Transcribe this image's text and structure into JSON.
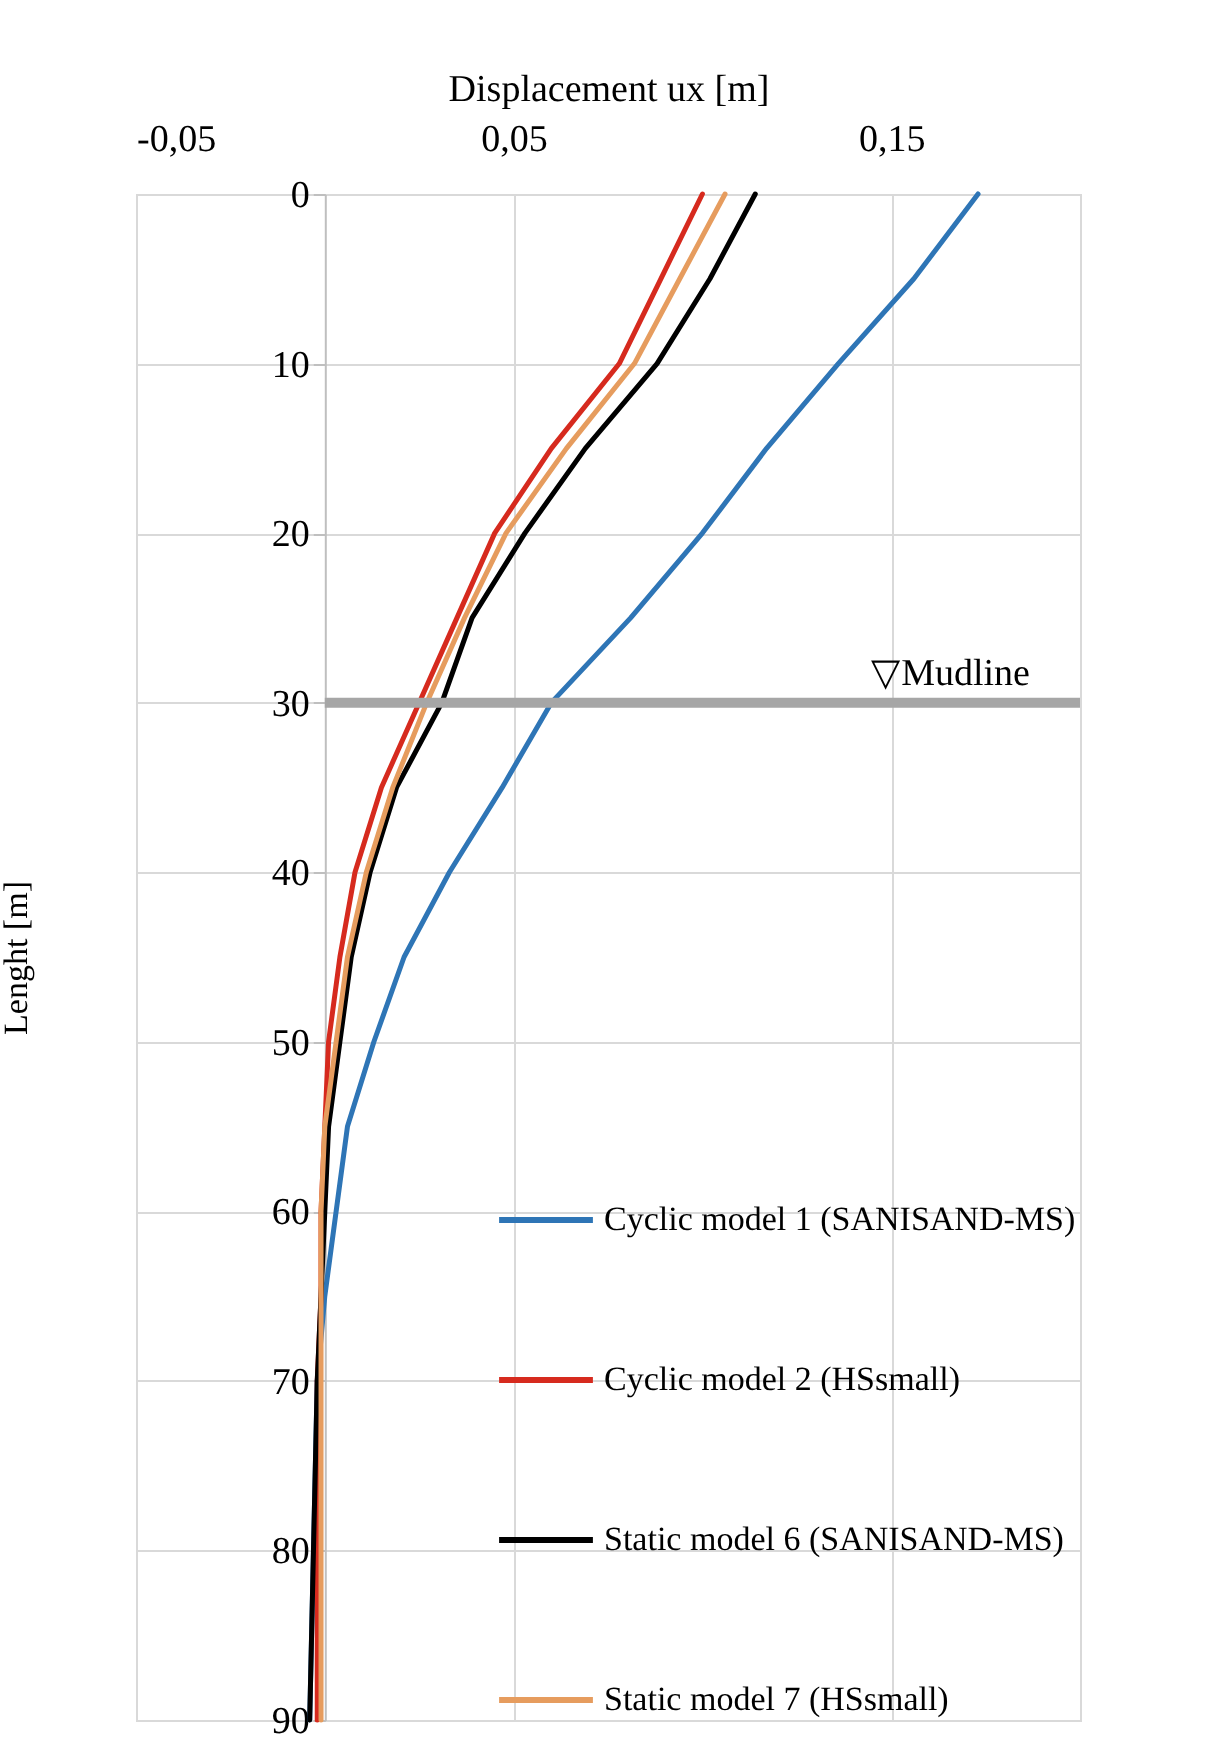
{
  "chart_data": {
    "type": "line",
    "xlabel": "Displacement ux [m]",
    "ylabel": "Lenght [m]",
    "xlim": [
      -0.05,
      0.2
    ],
    "xticks": [
      {
        "value": -0.05,
        "label": "-0,05"
      },
      {
        "value": 0.05,
        "label": "0,05"
      },
      {
        "value": 0.15,
        "label": "0,15"
      }
    ],
    "ylim": [
      90,
      0
    ],
    "yticks": [
      0,
      10,
      20,
      30,
      40,
      50,
      60,
      70,
      80,
      90
    ],
    "grid": true,
    "legend": "bottom right",
    "series": [
      {
        "name": "Cyclic model 1 (SANISAND-MS)",
        "color": "#2e75b6",
        "x": [
          0.173,
          0.156,
          0.136,
          0.117,
          0.1,
          0.081,
          0.06,
          0.047,
          0.033,
          0.021,
          0.013,
          0.006,
          0.003,
          0.0,
          -0.002,
          -0.003,
          -0.004
        ],
        "values": [
          0,
          5,
          10,
          15,
          20,
          25,
          30,
          35,
          40,
          45,
          50,
          55,
          60,
          65,
          70,
          80,
          90
        ]
      },
      {
        "name": "Cyclic model 2 (HSsmall)",
        "color": "#d62a1e",
        "x": [
          0.1,
          0.089,
          0.078,
          0.06,
          0.045,
          0.035,
          0.025,
          0.015,
          0.008,
          0.004,
          0.001,
          0.0,
          -0.001,
          -0.001,
          -0.002,
          -0.002,
          -0.002
        ],
        "values": [
          0,
          5,
          10,
          15,
          20,
          25,
          30,
          35,
          40,
          45,
          50,
          55,
          60,
          65,
          70,
          80,
          90
        ]
      },
      {
        "name": "Static model 6 (SANISAND-MS)",
        "color": "#000000",
        "x": [
          0.114,
          0.102,
          0.088,
          0.069,
          0.053,
          0.039,
          0.031,
          0.019,
          0.012,
          0.007,
          0.004,
          0.001,
          0.0,
          -0.001,
          -0.002,
          -0.003,
          -0.004
        ],
        "values": [
          0,
          5,
          10,
          15,
          20,
          25,
          30,
          35,
          40,
          45,
          50,
          55,
          60,
          65,
          70,
          80,
          90
        ]
      },
      {
        "name": "Static model 7 (HSsmall)",
        "color": "#e69c5e",
        "x": [
          0.106,
          0.094,
          0.082,
          0.064,
          0.048,
          0.037,
          0.027,
          0.018,
          0.011,
          0.006,
          0.003,
          0.0,
          -0.001,
          -0.001,
          -0.001,
          -0.001,
          -0.001
        ],
        "values": [
          0,
          5,
          10,
          15,
          20,
          25,
          30,
          35,
          40,
          45,
          50,
          55,
          60,
          65,
          70,
          80,
          90
        ]
      }
    ],
    "ref_lines": [
      {
        "axis": "y",
        "value": 30,
        "label": "▽Mudline",
        "color": "#a6a6a6"
      }
    ]
  }
}
